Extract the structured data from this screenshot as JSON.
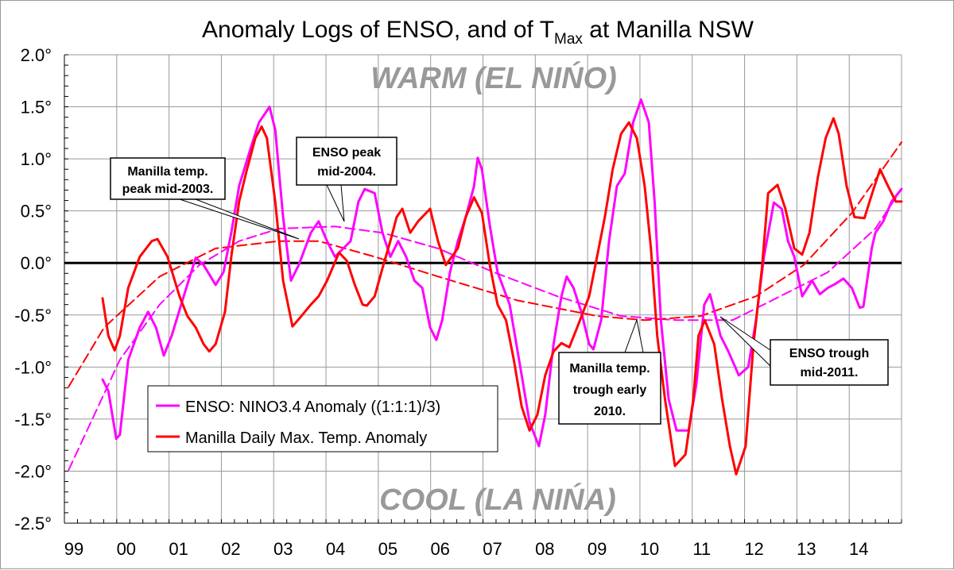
{
  "chart_data": {
    "type": "line",
    "title_main": "Anomaly Logs of ENSO, and of T",
    "title_sub": "Max",
    "title_tail": " at Manilla NSW",
    "xlabel": "",
    "ylabel": "",
    "xlim": [
      1999,
      2015
    ],
    "ylim": [
      -2.5,
      2.0
    ],
    "grid": true,
    "x_tick_labels": [
      "99",
      "00",
      "01",
      "02",
      "03",
      "04",
      "05",
      "06",
      "07",
      "08",
      "09",
      "10",
      "11",
      "12",
      "13",
      "14"
    ],
    "y_tick_labels": [
      "2.0°",
      "1.5°",
      "1.0°",
      "0.5°",
      "0.0°",
      "-0.5°",
      "-1.0°",
      "-1.5°",
      "-2.0°",
      "-2.5°"
    ],
    "region_labels": {
      "warm": "WARM (EL NIŃO)",
      "cool": "COOL (LA NIŃA)"
    },
    "legend_position": "lower-left",
    "series": [
      {
        "name": "ENSO: NINO3.4 Anomaly ((1:1:1)/3)",
        "color": "#ff00ff",
        "style": "solid",
        "x": [
          1999.73,
          1999.84,
          1999.99,
          2000.06,
          2000.22,
          2000.44,
          2000.6,
          2000.75,
          2000.9,
          2001.05,
          2001.28,
          2001.51,
          2001.66,
          2001.89,
          2002.04,
          2002.19,
          2002.34,
          2002.57,
          2002.72,
          2002.92,
          2003.03,
          2003.18,
          2003.33,
          2003.48,
          2003.71,
          2003.86,
          2004.02,
          2004.17,
          2004.47,
          2004.62,
          2004.74,
          2004.93,
          2005.08,
          2005.23,
          2005.38,
          2005.53,
          2005.69,
          2005.84,
          2005.99,
          2006.11,
          2006.22,
          2006.37,
          2006.52,
          2006.67,
          2006.83,
          2006.9,
          2006.98,
          2007.13,
          2007.28,
          2007.51,
          2007.74,
          2007.89,
          2008.07,
          2008.19,
          2008.35,
          2008.5,
          2008.6,
          2008.73,
          2008.88,
          2009.03,
          2009.11,
          2009.26,
          2009.41,
          2009.56,
          2009.71,
          2009.87,
          2010.02,
          2010.17,
          2010.28,
          2010.4,
          2010.55,
          2010.7,
          2010.93,
          2011.08,
          2011.23,
          2011.34,
          2011.54,
          2011.69,
          2011.89,
          2012.07,
          2012.22,
          2012.37,
          2012.56,
          2012.71,
          2012.83,
          2012.95,
          2013.1,
          2013.29,
          2013.44,
          2013.59,
          2013.74,
          2013.89,
          2014.05,
          2014.2,
          2014.27,
          2014.43,
          2014.5,
          2014.65,
          2014.81,
          2015.0
        ],
        "y": [
          -1.12,
          -1.23,
          -1.69,
          -1.65,
          -0.93,
          -0.62,
          -0.47,
          -0.62,
          -0.89,
          -0.7,
          -0.32,
          0.05,
          -0.02,
          -0.21,
          -0.09,
          0.29,
          0.74,
          1.12,
          1.35,
          1.5,
          1.28,
          0.44,
          -0.17,
          -0.02,
          0.29,
          0.4,
          0.21,
          0.06,
          0.21,
          0.59,
          0.71,
          0.67,
          0.29,
          0.06,
          0.21,
          0.06,
          -0.17,
          -0.24,
          -0.62,
          -0.74,
          -0.55,
          -0.09,
          0.21,
          0.44,
          0.74,
          1.01,
          0.9,
          0.36,
          -0.09,
          -0.4,
          -1.08,
          -1.53,
          -1.76,
          -1.46,
          -0.78,
          -0.32,
          -0.13,
          -0.24,
          -0.47,
          -0.78,
          -0.83,
          -0.55,
          0.21,
          0.74,
          0.86,
          1.35,
          1.57,
          1.35,
          0.59,
          -0.55,
          -1.31,
          -1.61,
          -1.61,
          -1.16,
          -0.4,
          -0.3,
          -0.7,
          -0.85,
          -1.08,
          -1.0,
          -0.55,
          0.06,
          0.58,
          0.52,
          0.21,
          0.06,
          -0.32,
          -0.17,
          -0.3,
          -0.24,
          -0.2,
          -0.15,
          -0.24,
          -0.43,
          -0.42,
          0.14,
          0.29,
          0.4,
          0.59,
          0.71
        ]
      },
      {
        "name": "Manilla Daily Max. Temp. Anomaly",
        "color": "#ff0000",
        "style": "solid",
        "x": [
          1999.73,
          1999.84,
          1999.96,
          2000.06,
          2000.22,
          2000.44,
          2000.67,
          2000.78,
          2000.97,
          2001.2,
          2001.35,
          2001.51,
          2001.66,
          2001.77,
          2001.89,
          2002.07,
          2002.19,
          2002.34,
          2002.49,
          2002.65,
          2002.77,
          2002.87,
          2003.03,
          2003.18,
          2003.36,
          2003.53,
          2003.71,
          2003.86,
          2004.02,
          2004.25,
          2004.4,
          2004.55,
          2004.7,
          2004.78,
          2004.93,
          2005.08,
          2005.23,
          2005.35,
          2005.46,
          2005.61,
          2005.76,
          2005.99,
          2006.14,
          2006.29,
          2006.52,
          2006.67,
          2006.83,
          2006.98,
          2007.13,
          2007.28,
          2007.44,
          2007.59,
          2007.74,
          2007.89,
          2008.04,
          2008.19,
          2008.35,
          2008.5,
          2008.65,
          2008.8,
          2009.03,
          2009.18,
          2009.33,
          2009.48,
          2009.64,
          2009.79,
          2009.94,
          2010.09,
          2010.21,
          2010.33,
          2010.48,
          2010.67,
          2010.87,
          2011.02,
          2011.12,
          2011.24,
          2011.42,
          2011.57,
          2011.72,
          2011.84,
          2012.02,
          2012.17,
          2012.33,
          2012.45,
          2012.63,
          2012.78,
          2012.95,
          2013.1,
          2013.24,
          2013.4,
          2013.55,
          2013.7,
          2013.8,
          2013.95,
          2014.1,
          2014.29,
          2014.44,
          2014.59,
          2014.74,
          2014.89,
          2015.0
        ],
        "y": [
          -0.34,
          -0.7,
          -0.84,
          -0.7,
          -0.24,
          0.06,
          0.21,
          0.23,
          0.06,
          -0.32,
          -0.51,
          -0.62,
          -0.78,
          -0.85,
          -0.78,
          -0.47,
          0.06,
          0.59,
          0.9,
          1.2,
          1.31,
          1.2,
          0.59,
          -0.17,
          -0.61,
          -0.51,
          -0.4,
          -0.32,
          -0.17,
          0.1,
          0.02,
          -0.21,
          -0.4,
          -0.41,
          -0.32,
          -0.05,
          0.21,
          0.44,
          0.52,
          0.29,
          0.4,
          0.52,
          0.21,
          -0.02,
          0.14,
          0.44,
          0.63,
          0.48,
          -0.02,
          -0.4,
          -0.55,
          -0.93,
          -1.38,
          -1.61,
          -1.46,
          -1.08,
          -0.85,
          -0.77,
          -0.81,
          -0.62,
          -0.32,
          0.06,
          0.44,
          0.9,
          1.24,
          1.35,
          1.2,
          0.74,
          0.14,
          -0.7,
          -1.31,
          -1.95,
          -1.84,
          -1.31,
          -0.7,
          -0.55,
          -0.78,
          -1.31,
          -1.76,
          -2.03,
          -1.76,
          -0.78,
          -0.06,
          0.67,
          0.75,
          0.52,
          0.14,
          0.08,
          0.29,
          0.82,
          1.2,
          1.39,
          1.24,
          0.74,
          0.44,
          0.43,
          0.67,
          0.9,
          0.74,
          0.59,
          0.59
        ]
      },
      {
        "color": "#ff00ff",
        "style": "dashed",
        "trend_of": "ENSO: NINO3.4 Anomaly ((1:1:1)/3)",
        "x": [
          1999.08,
          2000.06,
          2000.82,
          2001.58,
          2002.34,
          2003.1,
          2004.17,
          2005.08,
          2006.14,
          2007.21,
          2008.42,
          2009.64,
          2010.7,
          2011.77,
          2012.68,
          2013.59,
          2014.5,
          2015.0
        ],
        "y": [
          -1.99,
          -0.93,
          -0.4,
          -0.02,
          0.21,
          0.33,
          0.35,
          0.29,
          0.14,
          -0.09,
          -0.32,
          -0.51,
          -0.55,
          -0.55,
          -0.32,
          -0.09,
          0.33,
          0.71
        ]
      },
      {
        "color": "#ff0000",
        "style": "dashed",
        "trend_of": "Manilla Daily Max. Temp. Anomaly",
        "x": [
          1999.08,
          1999.76,
          2000.82,
          2001.89,
          2003.1,
          2003.86,
          2004.93,
          2006.14,
          2007.66,
          2009.18,
          2010.09,
          2011.16,
          2012.22,
          2013.13,
          2014.05,
          2015.0
        ],
        "y": [
          -1.19,
          -0.62,
          -0.13,
          0.14,
          0.21,
          0.21,
          0.06,
          -0.13,
          -0.36,
          -0.51,
          -0.55,
          -0.51,
          -0.32,
          -0.02,
          0.48,
          1.16
        ]
      }
    ],
    "annotations": [
      {
        "lines": [
          "Manilla temp.",
          "peak mid-2003."
        ]
      },
      {
        "lines": [
          "ENSO peak",
          "mid-2004."
        ]
      },
      {
        "lines": [
          "Manilla temp.",
          "trough  early",
          "2010."
        ]
      },
      {
        "lines": [
          "ENSO trough",
          "mid-2011."
        ]
      }
    ]
  }
}
